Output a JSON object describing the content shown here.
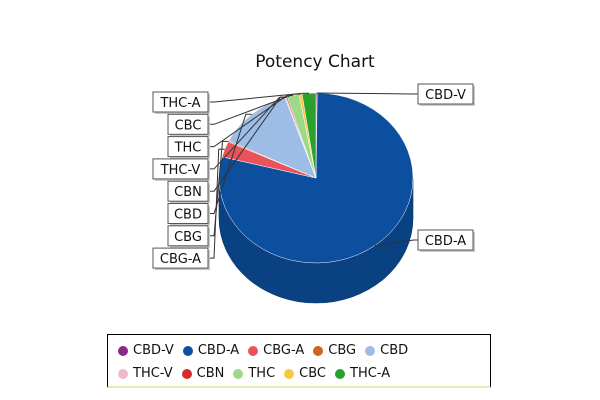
{
  "chart_data": {
    "type": "pie",
    "title": "Potency Chart",
    "categories": [
      "CBD-V",
      "CBD-A",
      "CBG-A",
      "CBG",
      "CBD",
      "THC-V",
      "CBN",
      "THC",
      "CBC",
      "THC-A"
    ],
    "values": [
      0.2,
      78.8,
      3.0,
      0.2,
      12.6,
      0.2,
      0.2,
      2.0,
      0.5,
      2.3
    ],
    "colors": [
      "#8b2a8b",
      "#0b4f9e",
      "#e8545a",
      "#d2621e",
      "#9dbde6",
      "#f3b8c8",
      "#d42b2b",
      "#9ed889",
      "#f4c842",
      "#2ca02c"
    ],
    "legend": {
      "position": "bottom",
      "rows": [
        [
          "CBD-V",
          "CBD-A",
          "CBG-A",
          "CBG",
          "CBD"
        ],
        [
          "THC-V",
          "CBN",
          "THC",
          "CBC",
          "THC-A"
        ]
      ]
    },
    "labels_left": [
      "THC-A",
      "CBC",
      "THC",
      "THC-V",
      "CBN",
      "CBD",
      "CBG",
      "CBG-A"
    ],
    "labels_right": [
      "CBD-V",
      "CBD-A"
    ]
  }
}
